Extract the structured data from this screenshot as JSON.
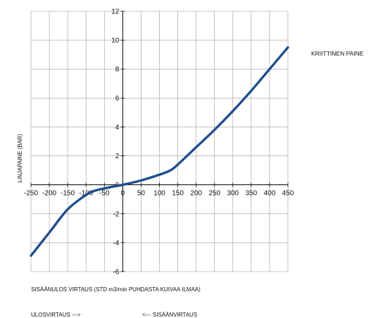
{
  "chart_data": {
    "type": "line",
    "xlabel": "SISÄÄNULOS VIRTAUS (STD m3/min PUHDASTA KUIVAA ILMAA)",
    "ylabel": "LINJAPAINE (BAR)",
    "xlim": [
      -250,
      450
    ],
    "ylim": [
      -6,
      12
    ],
    "x_ticks": [
      -250,
      -200,
      -150,
      -100,
      -50,
      0,
      50,
      100,
      150,
      200,
      250,
      300,
      350,
      400,
      450
    ],
    "x_tick_labels": [
      "-250",
      "-200",
      "-150",
      "-100",
      "-50",
      "0",
      "50",
      "100",
      "150",
      "200",
      "250",
      "300",
      "350",
      "400",
      "450"
    ],
    "y_ticks": [
      -6,
      -4,
      -2,
      0,
      2,
      4,
      6,
      8,
      10,
      12
    ],
    "y_tick_labels": [
      "-6",
      "-4",
      "-2",
      "0",
      "2",
      "4",
      "6",
      "8",
      "10",
      "12"
    ],
    "grid": true,
    "series": [
      {
        "name": "KRIITTINEN PAINE",
        "color": "#1f4e8c",
        "x": [
          -250,
          -200,
          -150,
          -100,
          -75,
          -50,
          -25,
          0,
          50,
          100,
          130,
          150,
          200,
          250,
          300,
          350,
          400,
          450
        ],
        "y": [
          -4.9,
          -3.3,
          -1.7,
          -0.7,
          -0.4,
          -0.25,
          -0.12,
          0,
          0.3,
          0.7,
          1.0,
          1.4,
          2.6,
          3.8,
          5.1,
          6.5,
          8.0,
          9.5
        ]
      }
    ],
    "legend": {
      "position": "right",
      "entries": [
        "KRIITTINEN PAINE"
      ]
    },
    "annotations": {
      "left_direction": "ULOSVIRTAUS --->",
      "right_direction": "<--- SISÄÄNVIRTAUS"
    }
  }
}
